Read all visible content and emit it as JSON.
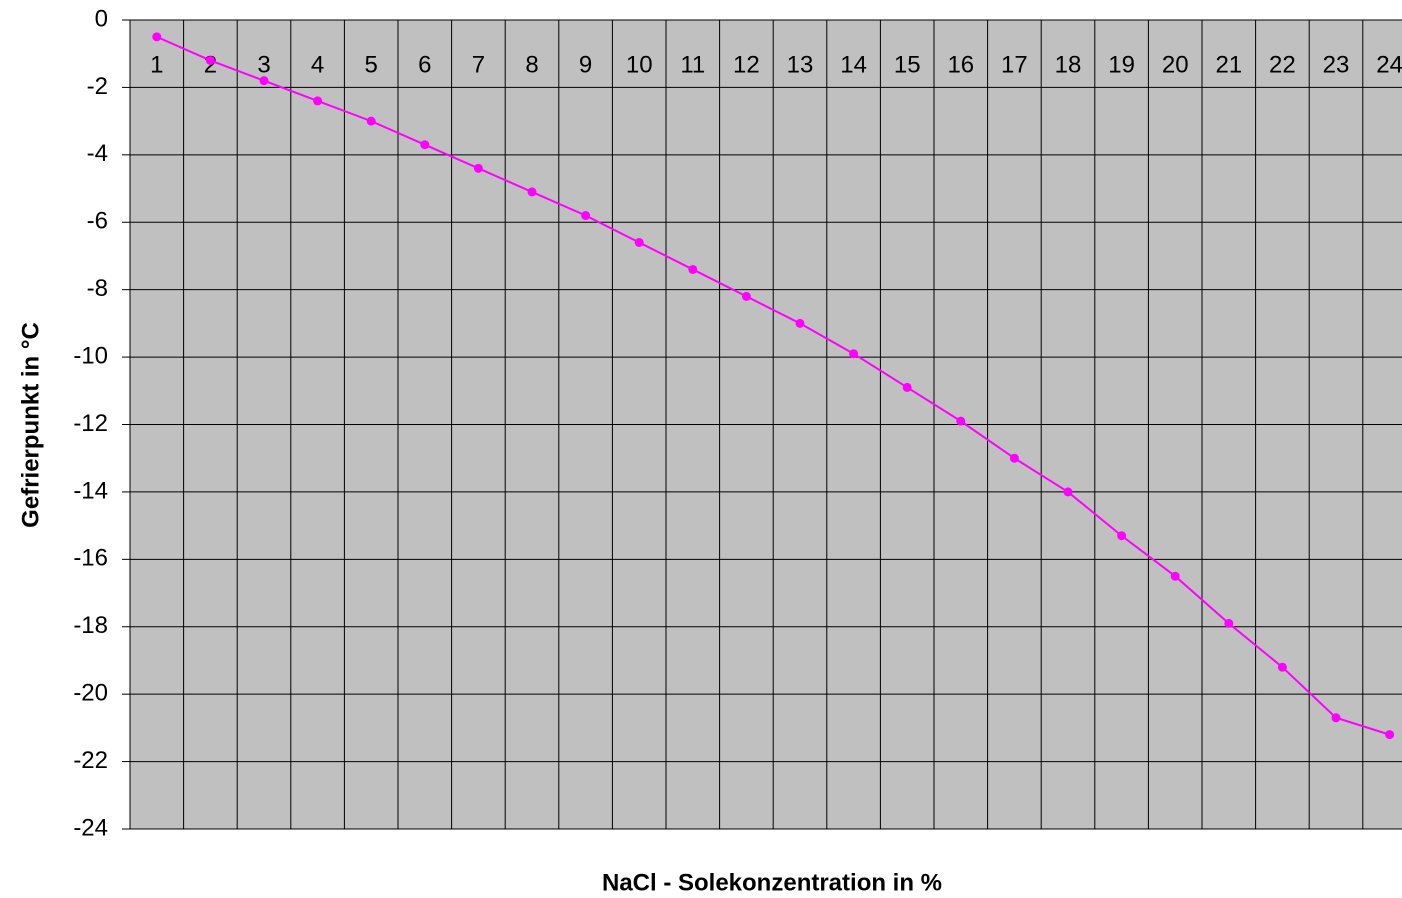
{
  "chart_data": {
    "type": "line",
    "x_label": "NaCl - Solekonzentration in %",
    "y_label": "Gefrierpunkt in °C",
    "categories": [
      "1",
      "2",
      "3",
      "4",
      "5",
      "6",
      "7",
      "8",
      "9",
      "10",
      "11",
      "12",
      "13",
      "14",
      "15",
      "16",
      "17",
      "18",
      "19",
      "20",
      "21",
      "22",
      "23",
      "24"
    ],
    "series": [
      {
        "name": "Gefrierpunkt",
        "color": "#ff00ff",
        "values": [
          -0.5,
          -1.2,
          -1.8,
          -2.4,
          -3.0,
          -3.7,
          -4.4,
          -5.1,
          -5.8,
          -6.6,
          -7.4,
          -8.2,
          -9.0,
          -9.9,
          -10.9,
          -11.9,
          -13.0,
          -14.0,
          -15.3,
          -16.5,
          -17.9,
          -19.2,
          -20.7,
          -21.2
        ]
      }
    ],
    "ylim": [
      -24,
      0
    ],
    "yticks": [
      0,
      -2,
      -4,
      -6,
      -8,
      -10,
      -12,
      -14,
      -16,
      -18,
      -20,
      -22,
      -24
    ],
    "grid": true
  }
}
